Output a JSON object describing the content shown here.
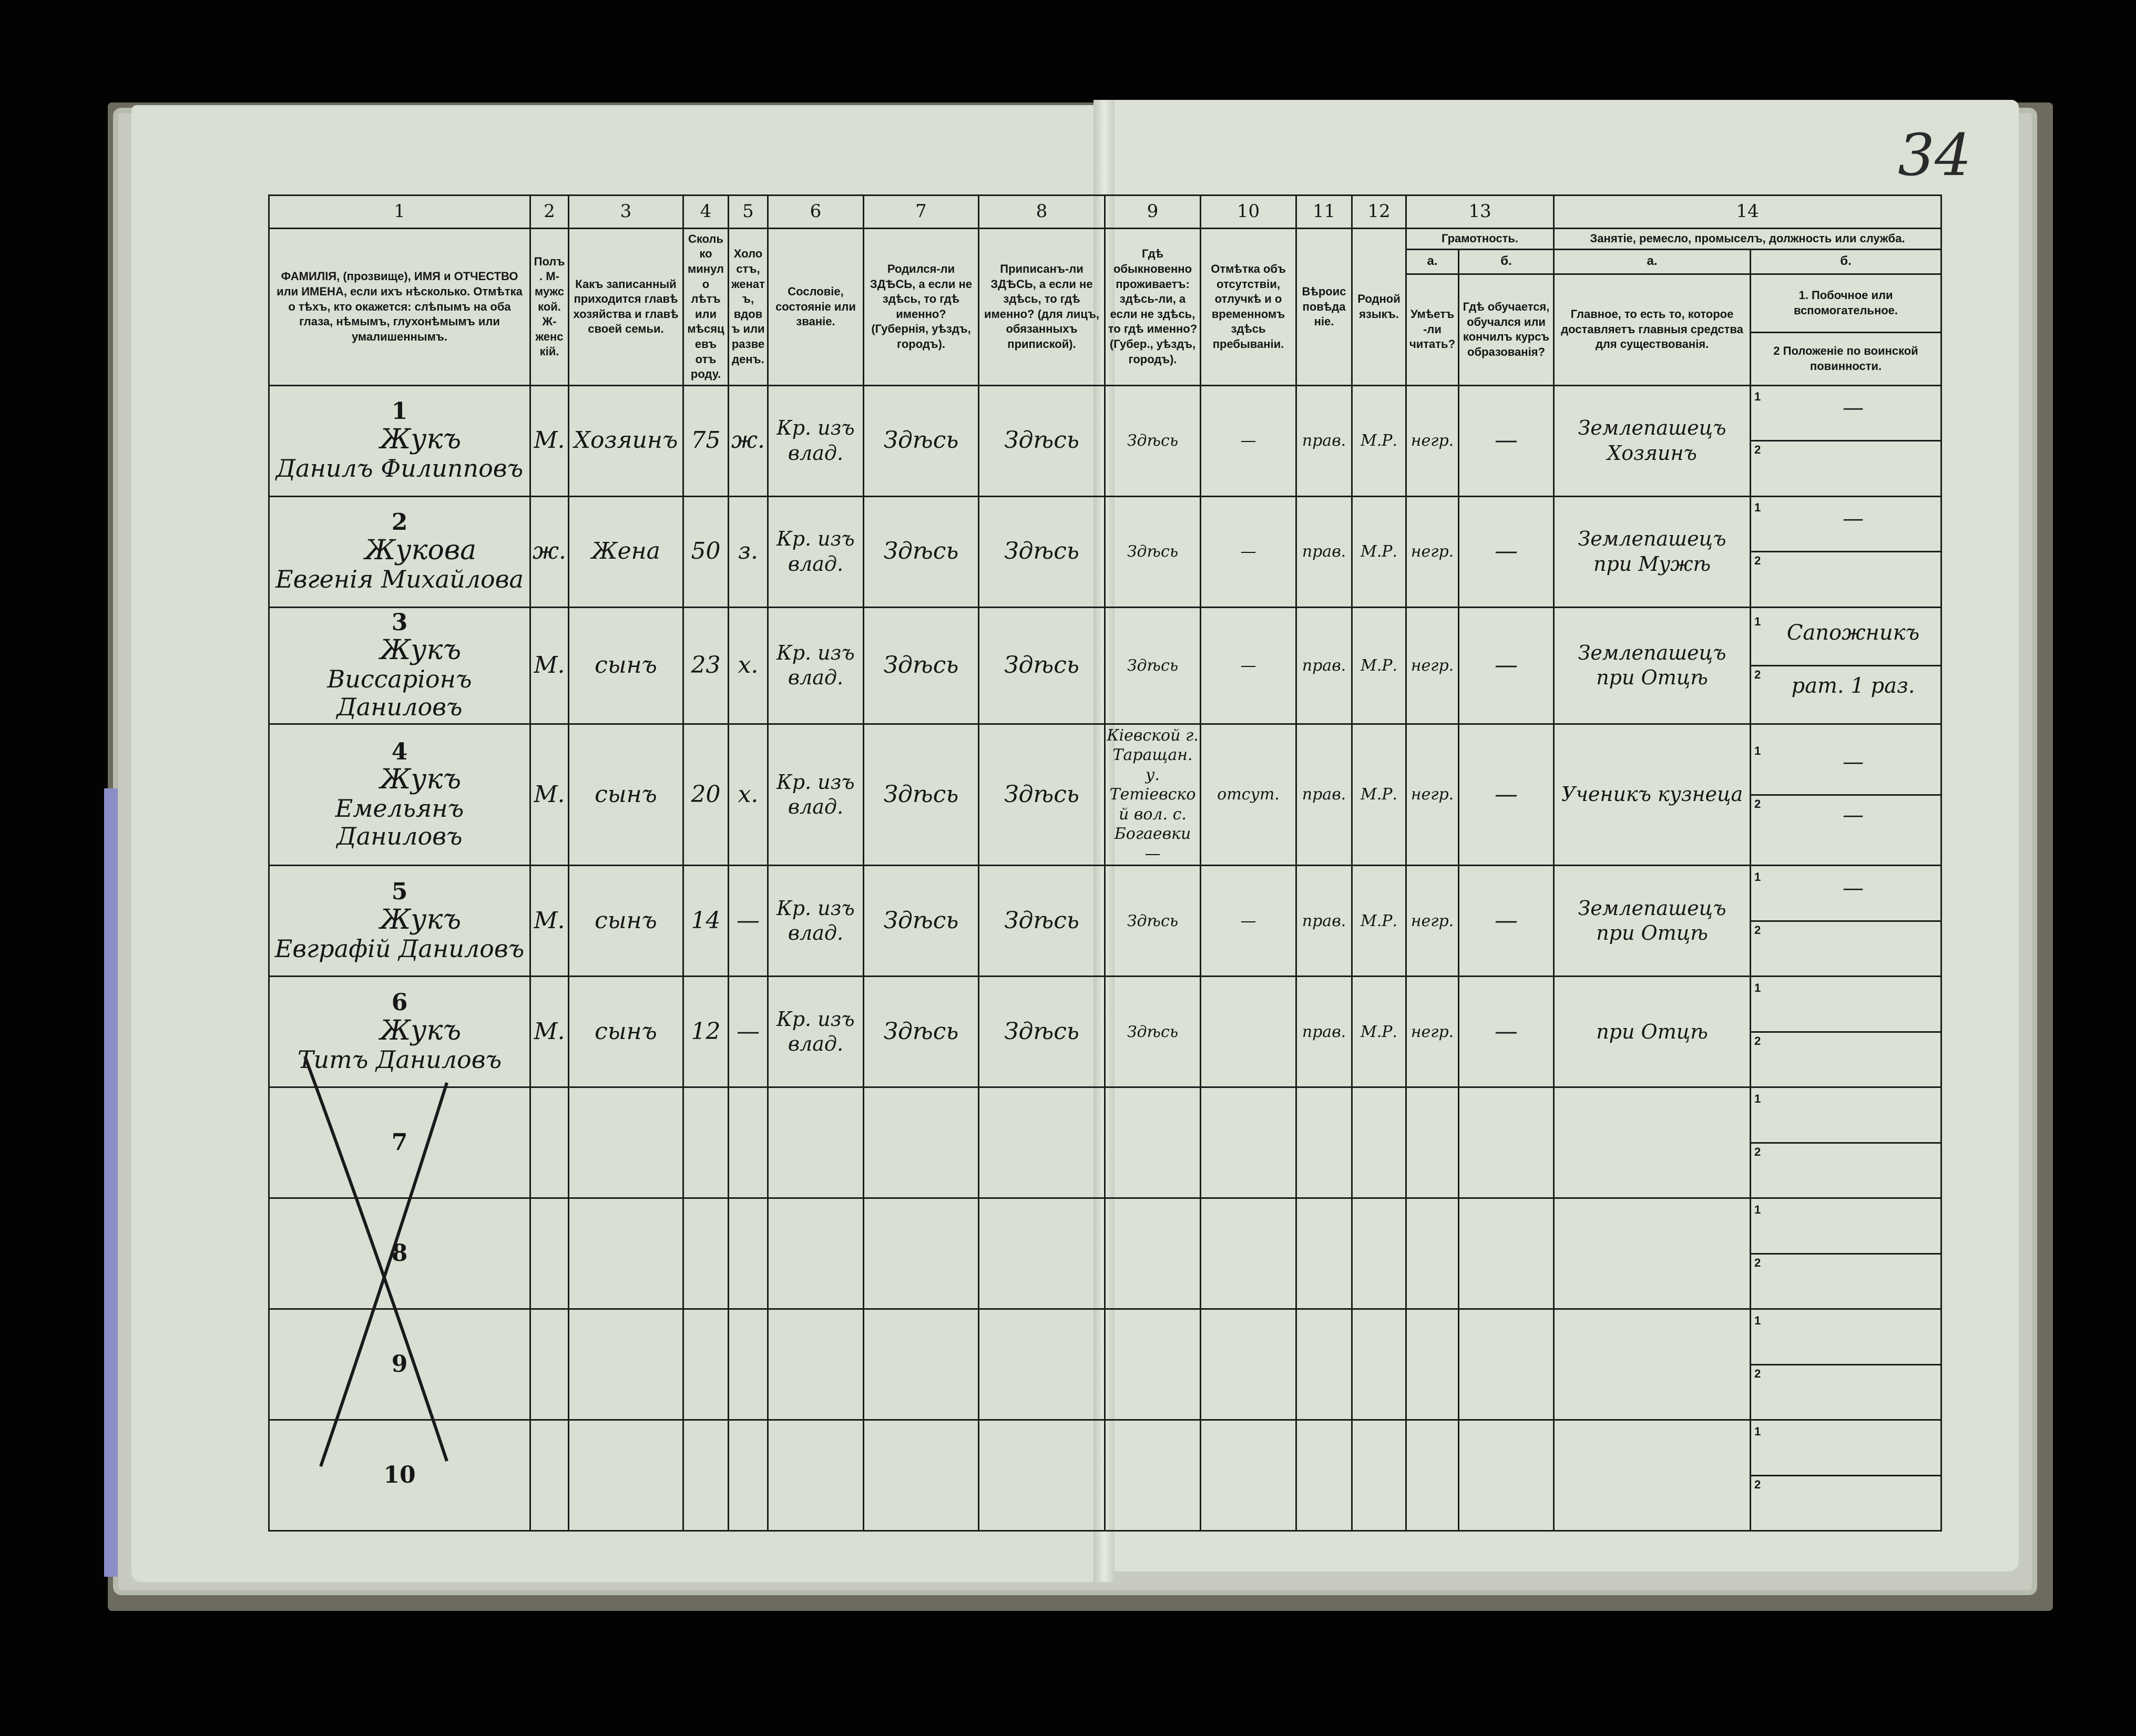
{
  "page_number": "34",
  "columns": [
    {
      "num": "1",
      "label": "ФАМИЛІЯ, (прозвище), ИМЯ и ОТЧЕСТВО или ИМЕНА, если ихъ нѣсколько. Отмѣтка о тѣхъ, кто окажется: слѣпымъ на оба глаза, нѣмымъ, глухонѣмымъ или умалишеннымъ."
    },
    {
      "num": "2",
      "label": "Полъ. М-мужской. Ж-женскій."
    },
    {
      "num": "3",
      "label": "Какъ записанный приходится главѣ хозяйства и главѣ своей семьи."
    },
    {
      "num": "4",
      "label": "Сколько минуло лѣтъ или мѣсяцевъ отъ роду."
    },
    {
      "num": "5",
      "label": "Холостъ, женатъ, вдовъ или разведенъ."
    },
    {
      "num": "6",
      "label": "Сословіе, состояніе или званіе."
    },
    {
      "num": "7",
      "label": "Родился-ли ЗДѢСЬ, а если не здѣсь, то гдѣ именно? (Губернія, уѣздъ, городъ)."
    },
    {
      "num": "8",
      "label": "Приписанъ-ли ЗДѢСЬ, а если не здѣсь, то гдѣ именно? (для лицъ, обязанныхъ припиской)."
    },
    {
      "num": "9",
      "label": "Гдѣ обыкновенно проживаетъ: здѣсь-ли, а если не здѣсь, то гдѣ именно? (Губер., уѣздъ, городъ)."
    },
    {
      "num": "10",
      "label": "Отмѣтка объ отсутствіи, отлучкѣ и о временномъ здѣсь пребываніи."
    },
    {
      "num": "11",
      "label": "Вѣроисповѣданіе."
    },
    {
      "num": "12",
      "label": "Родной языкъ."
    },
    {
      "num": "13",
      "label": "Грамотность.",
      "sub": [
        {
          "letter": "а.",
          "label": "Умѣетъ-ли читать?"
        },
        {
          "letter": "б.",
          "label": "Гдѣ обучается, обучался или кончилъ курсъ образованія?"
        }
      ]
    },
    {
      "num": "14",
      "label": "Занятіе, ремесло, промыселъ, должность или служба.",
      "sub": [
        {
          "letter": "а.",
          "label": "Главное, то есть то, которое доставляетъ главныя средства для существованія."
        },
        {
          "letter": "б.",
          "label_1": "1. Побочное или вспомогательное.",
          "label_2": "2 Положеніе по воинской повинности."
        }
      ]
    }
  ],
  "rows": [
    {
      "n": "1",
      "surname": "Жукъ",
      "name": "Данилъ Филипповъ",
      "sex": "М.",
      "relation": "Хозяинъ",
      "age": "75",
      "marital": "ж.",
      "estate": "Кр. изъ влад.",
      "born": "Здѣсь",
      "registered": "Здѣсь",
      "residence": "Здѣсь",
      "absence": "—",
      "religion": "прав.",
      "language": "М.Р.",
      "reads": "негр.",
      "school": "—",
      "occ_main": "Землепашецъ Хозяинъ",
      "occ_side": "—",
      "military": ""
    },
    {
      "n": "2",
      "surname": "Жукова",
      "name": "Евгенія Михайлова",
      "sex": "ж.",
      "relation": "Жена",
      "age": "50",
      "marital": "з.",
      "estate": "Кр. изъ влад.",
      "born": "Здѣсь",
      "registered": "Здѣсь",
      "residence": "Здѣсь",
      "absence": "—",
      "religion": "прав.",
      "language": "М.Р.",
      "reads": "негр.",
      "school": "—",
      "occ_main": "Землепашецъ при Мужѣ",
      "occ_side": "—",
      "military": ""
    },
    {
      "n": "3",
      "surname": "Жукъ",
      "name": "Виссаріонъ Даниловъ",
      "sex": "М.",
      "relation": "сынъ",
      "age": "23",
      "marital": "х.",
      "estate": "Кр. изъ влад.",
      "born": "Здѣсь",
      "registered": "Здѣсь",
      "residence": "Здѣсь",
      "absence": "—",
      "religion": "прав.",
      "language": "М.Р.",
      "reads": "негр.",
      "school": "—",
      "occ_main": "Землепашецъ при Отцѣ",
      "occ_side": "Сапожникъ",
      "military": "рат. 1 раз."
    },
    {
      "n": "4",
      "surname": "Жукъ",
      "name": "Емельянъ Даниловъ",
      "sex": "М.",
      "relation": "сынъ",
      "age": "20",
      "marital": "х.",
      "estate": "Кр. изъ влад.",
      "born": "Здѣсь",
      "registered": "Здѣсь",
      "residence": "Кіевской г. Таращан. у. Тетіевской вол. с. Богаевки —",
      "absence": "отсут.",
      "religion": "прав.",
      "language": "М.Р.",
      "reads": "негр.",
      "school": "—",
      "occ_main": "Ученикъ кузнеца",
      "occ_side": "—",
      "military": "—"
    },
    {
      "n": "5",
      "surname": "Жукъ",
      "name": "Евграфій Даниловъ",
      "sex": "М.",
      "relation": "сынъ",
      "age": "14",
      "marital": "—",
      "estate": "Кр. изъ влад.",
      "born": "Здѣсь",
      "registered": "Здѣсь",
      "residence": "Здѣсь",
      "absence": "—",
      "religion": "прав.",
      "language": "М.Р.",
      "reads": "негр.",
      "school": "—",
      "occ_main": "Землепашецъ при Отцѣ",
      "occ_side": "—",
      "military": ""
    },
    {
      "n": "6",
      "surname": "Жукъ",
      "name": "Титъ Даниловъ",
      "sex": "М.",
      "relation": "сынъ",
      "age": "12",
      "marital": "—",
      "estate": "Кр. изъ влад.",
      "born": "Здѣсь",
      "registered": "Здѣсь",
      "residence": "Здѣсь",
      "absence": "",
      "religion": "прав.",
      "language": "М.Р.",
      "reads": "негр.",
      "school": "—",
      "occ_main": "при Отцѣ",
      "occ_side": "",
      "military": ""
    },
    {
      "n": "7"
    },
    {
      "n": "8"
    },
    {
      "n": "9"
    },
    {
      "n": "10"
    }
  ],
  "sub_row_labels": [
    "1",
    "2"
  ],
  "colors": {
    "paper": "#dbe1d5",
    "ink": "#161616",
    "background": "#000000"
  }
}
